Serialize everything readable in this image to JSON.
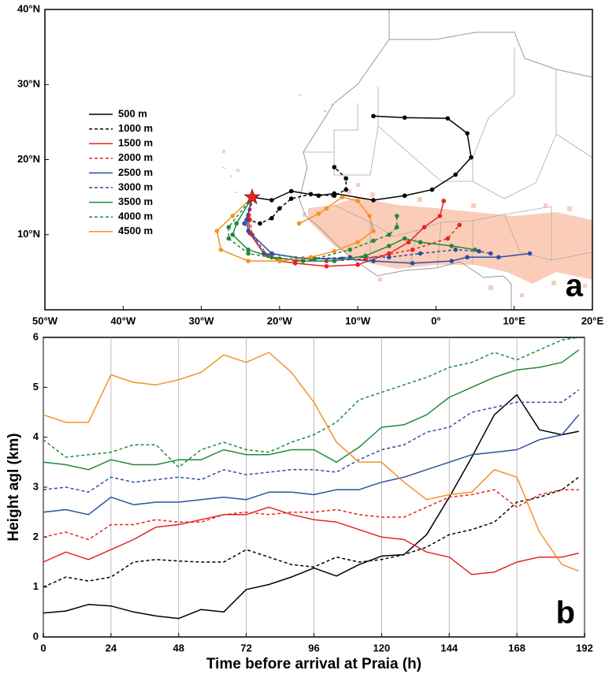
{
  "chart_data": [
    {
      "type": "map",
      "panel_label": "a",
      "legend": "left",
      "xlim": [
        -50,
        20
      ],
      "ylim": [
        0,
        40
      ],
      "xticks": [
        {
          "value": -50,
          "label": "50°W"
        },
        {
          "value": -40,
          "label": "40°W"
        },
        {
          "value": -30,
          "label": "30°W"
        },
        {
          "value": -20,
          "label": "20°W"
        },
        {
          "value": -10,
          "label": "10°W"
        },
        {
          "value": 0,
          "label": "0°"
        },
        {
          "value": 10,
          "label": "10°E"
        },
        {
          "value": 20,
          "label": "20°E"
        }
      ],
      "yticks": [
        {
          "value": 10,
          "label": "10°N"
        },
        {
          "value": 20,
          "label": "20°N"
        },
        {
          "value": 30,
          "label": "30°N"
        },
        {
          "value": 40,
          "label": "40°N"
        }
      ],
      "series": [
        {
          "name": "500 m",
          "color": "#000000",
          "dashed": false,
          "x": [
            -23.5,
            -21,
            -18.5,
            -15,
            -13,
            -8,
            -4,
            -0.5,
            2.5,
            4.5,
            4,
            1.5,
            -4,
            -8
          ],
          "y": [
            15,
            14.6,
            15.8,
            15.2,
            15.5,
            14.6,
            15.2,
            16,
            18,
            20.3,
            23.5,
            25.5,
            25.6,
            25.8
          ]
        },
        {
          "name": "1000 m",
          "color": "#000000",
          "dashed": true,
          "x": [
            -23.5,
            -24,
            -22.5,
            -21,
            -20,
            -18.5,
            -16,
            -13,
            -11.5,
            -11.5,
            -13
          ],
          "y": [
            15,
            12,
            11.5,
            12.2,
            13.5,
            14.8,
            15.4,
            15.2,
            16,
            17.5,
            19
          ]
        },
        {
          "name": "1500 m",
          "color": "#e8231f",
          "dashed": false,
          "x": [
            -23.5,
            -24,
            -23.8,
            -22,
            -20,
            -18,
            -14,
            -10,
            -6,
            -3.5,
            -1.5,
            0.5,
            1
          ],
          "y": [
            15,
            12.5,
            10.2,
            7.5,
            6.5,
            6.2,
            5.8,
            6,
            7.5,
            9,
            11,
            12.5,
            14.5
          ]
        },
        {
          "name": "2000 m",
          "color": "#e8231f",
          "dashed": true,
          "x": [
            -23.5,
            -23.8,
            -23.5,
            -21.5,
            -18,
            -14,
            -9,
            -3,
            1.5,
            3
          ],
          "y": [
            15,
            12,
            10,
            7.2,
            6.5,
            6.5,
            6.8,
            8,
            9.5,
            11.3
          ]
        },
        {
          "name": "2500 m",
          "color": "#2b4fa2",
          "dashed": false,
          "x": [
            -23.5,
            -24.2,
            -24,
            -21,
            -17,
            -12,
            -8,
            -3,
            2,
            4,
            8,
            12
          ],
          "y": [
            15,
            12,
            10.5,
            7.5,
            6.8,
            6.8,
            6.5,
            6.2,
            6.5,
            7,
            7,
            7.5
          ]
        },
        {
          "name": "3000 m",
          "color": "#2b4fa2",
          "dashed": true,
          "x": [
            -23.5,
            -24.5,
            -22,
            -16,
            -11,
            -6,
            -2,
            2.5,
            5.5,
            7
          ],
          "y": [
            15,
            11.5,
            7.5,
            6.8,
            7,
            7,
            7.5,
            8,
            7.8,
            7.5
          ]
        },
        {
          "name": "3500 m",
          "color": "#1f8a3a",
          "dashed": false,
          "x": [
            -23.5,
            -25.5,
            -26,
            -24,
            -21,
            -17,
            -13,
            -9,
            -6,
            -4,
            -2,
            2,
            5
          ],
          "y": [
            15,
            11.5,
            10,
            8,
            7,
            6.5,
            6.5,
            7.2,
            8.5,
            9.5,
            9,
            8.5,
            8
          ]
        },
        {
          "name": "4000 m",
          "color": "#1f8a3a",
          "dashed": true,
          "x": [
            -23.5,
            -26.5,
            -26.5,
            -24,
            -20,
            -15.5,
            -11,
            -8,
            -6,
            -5,
            -5
          ],
          "y": [
            15,
            11,
            9.5,
            7.5,
            6.8,
            6.8,
            8,
            9.2,
            10,
            11,
            12.5
          ]
        },
        {
          "name": "4500 m",
          "color": "#f39224",
          "dashed": false,
          "x": [
            -23.5,
            -26,
            -28,
            -27.5,
            -24,
            -20,
            -16,
            -13,
            -10,
            -8,
            -8.5,
            -10,
            -12,
            -14,
            -15,
            -17.5
          ],
          "y": [
            15,
            12.5,
            10.5,
            8,
            6.5,
            6.5,
            7,
            7.8,
            9,
            10.5,
            12.5,
            14.5,
            15,
            13.5,
            12.8,
            11.5
          ]
        }
      ]
    },
    {
      "type": "line",
      "panel_label": "b",
      "xlabel": "Time before arrival at Praia (h)",
      "ylabel": "Height agl (km)",
      "xlim": [
        0,
        192
      ],
      "ylim": [
        0,
        6
      ],
      "xticks": [
        0,
        24,
        48,
        72,
        96,
        120,
        144,
        168,
        192
      ],
      "yticks": [
        0,
        1,
        2,
        3,
        4,
        5,
        6
      ],
      "xgrid": true,
      "x": [
        0,
        8,
        16,
        24,
        32,
        40,
        48,
        56,
        64,
        72,
        80,
        88,
        96,
        104,
        112,
        120,
        128,
        136,
        144,
        152,
        160,
        168,
        176,
        184,
        190
      ],
      "series": [
        {
          "color": "#000000",
          "dashed": false,
          "values": [
            0.48,
            0.52,
            0.65,
            0.62,
            0.5,
            0.42,
            0.37,
            0.55,
            0.5,
            0.95,
            1.05,
            1.2,
            1.38,
            1.22,
            1.45,
            1.62,
            1.65,
            2.05,
            2.8,
            3.6,
            4.45,
            4.85,
            4.15,
            4.05,
            4.12
          ]
        },
        {
          "color": "#000000",
          "dashed": true,
          "values": [
            1.0,
            1.2,
            1.12,
            1.2,
            1.5,
            1.55,
            1.52,
            1.5,
            1.5,
            1.75,
            1.6,
            1.45,
            1.4,
            1.6,
            1.5,
            1.55,
            1.65,
            1.8,
            2.05,
            2.15,
            2.3,
            2.7,
            2.8,
            2.95,
            3.2
          ]
        },
        {
          "color": "#e8231f",
          "dashed": false,
          "values": [
            1.5,
            1.7,
            1.55,
            1.75,
            1.95,
            2.2,
            2.25,
            2.35,
            2.45,
            2.45,
            2.6,
            2.45,
            2.35,
            2.3,
            2.15,
            2.0,
            1.95,
            1.7,
            1.6,
            1.25,
            1.3,
            1.5,
            1.6,
            1.6,
            1.68
          ]
        },
        {
          "color": "#e8231f",
          "dashed": true,
          "values": [
            2.0,
            2.1,
            1.95,
            2.25,
            2.25,
            2.35,
            2.3,
            2.3,
            2.45,
            2.5,
            2.45,
            2.5,
            2.5,
            2.55,
            2.45,
            2.4,
            2.4,
            2.6,
            2.8,
            2.85,
            2.95,
            2.6,
            2.85,
            2.95,
            2.95
          ]
        },
        {
          "color": "#2b4fa2",
          "dashed": false,
          "values": [
            2.5,
            2.55,
            2.45,
            2.8,
            2.65,
            2.7,
            2.7,
            2.75,
            2.8,
            2.75,
            2.9,
            2.9,
            2.85,
            2.95,
            2.95,
            3.1,
            3.2,
            3.35,
            3.5,
            3.65,
            3.7,
            3.75,
            3.95,
            4.05,
            4.45
          ]
        },
        {
          "color": "#2b4fa2",
          "dashed": true,
          "values": [
            2.95,
            3.0,
            2.9,
            3.2,
            3.1,
            3.15,
            3.2,
            3.15,
            3.35,
            3.25,
            3.3,
            3.35,
            3.35,
            3.3,
            3.55,
            3.75,
            3.85,
            4.1,
            4.2,
            4.5,
            4.6,
            4.7,
            4.7,
            4.7,
            4.95
          ]
        },
        {
          "color": "#1f8a3a",
          "dashed": false,
          "values": [
            3.5,
            3.45,
            3.35,
            3.55,
            3.45,
            3.45,
            3.55,
            3.55,
            3.75,
            3.65,
            3.65,
            3.75,
            3.75,
            3.5,
            3.8,
            4.2,
            4.25,
            4.45,
            4.8,
            5.0,
            5.2,
            5.35,
            5.4,
            5.5,
            5.75
          ]
        },
        {
          "color": "#1f8a3a",
          "dashed": true,
          "values": [
            3.95,
            3.6,
            3.65,
            3.7,
            3.85,
            3.85,
            3.4,
            3.75,
            3.9,
            3.75,
            3.7,
            3.9,
            4.05,
            4.3,
            4.75,
            4.9,
            5.05,
            5.2,
            5.4,
            5.5,
            5.7,
            5.55,
            5.75,
            5.95,
            6.0
          ]
        },
        {
          "color": "#f39224",
          "dashed": false,
          "values": [
            4.45,
            4.3,
            4.3,
            5.25,
            5.1,
            5.05,
            5.15,
            5.3,
            5.65,
            5.5,
            5.7,
            5.3,
            4.7,
            3.9,
            3.5,
            3.5,
            3.1,
            2.75,
            2.85,
            2.9,
            3.35,
            3.2,
            2.1,
            1.45,
            1.32
          ]
        }
      ]
    }
  ]
}
